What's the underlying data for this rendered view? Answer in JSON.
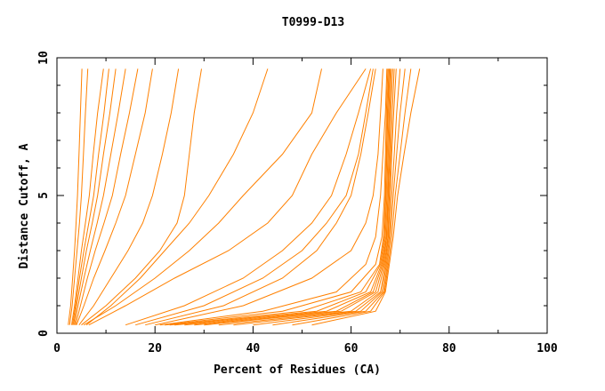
{
  "chart_data": {
    "type": "line",
    "title": "T0999-D13",
    "xlabel": "Percent of Residues (CA)",
    "ylabel": "Distance Cutoff, A",
    "xlim": [
      0,
      100
    ],
    "ylim": [
      0,
      10
    ],
    "x_ticks": [
      0,
      20,
      40,
      60,
      80,
      100
    ],
    "y_ticks": [
      0,
      5,
      10
    ],
    "grid": false,
    "legend": "none",
    "line_color": "#ff8000",
    "series": [
      {
        "x": [
          2.3,
          2.8,
          3.2,
          3.6,
          3.9,
          4.2,
          4.5,
          4.8,
          5.1
        ],
        "y": [
          0.3,
          1.0,
          2.0,
          3.0,
          4.0,
          5.0,
          6.5,
          8.0,
          9.6
        ]
      },
      {
        "x": [
          2.6,
          3.1,
          3.6,
          4.1,
          4.6,
          5.0,
          5.4,
          5.8,
          6.3
        ],
        "y": [
          0.3,
          1.0,
          2.0,
          3.0,
          4.0,
          5.0,
          6.5,
          8.0,
          9.6
        ]
      },
      {
        "x": [
          3.0,
          3.6,
          4.3,
          5.0,
          5.8,
          6.6,
          7.4,
          8.3,
          9.5
        ],
        "y": [
          0.3,
          1.0,
          2.0,
          3.0,
          4.0,
          5.0,
          6.5,
          8.0,
          9.6
        ]
      },
      {
        "x": [
          3.2,
          3.8,
          4.6,
          5.5,
          6.5,
          7.5,
          8.5,
          9.6,
          10.6
        ],
        "y": [
          0.3,
          1.0,
          2.0,
          3.0,
          4.0,
          5.0,
          6.5,
          8.0,
          9.6
        ]
      },
      {
        "x": [
          3.4,
          4.0,
          5.0,
          6.0,
          7.2,
          8.3,
          9.5,
          10.8,
          12.0
        ],
        "y": [
          0.3,
          1.0,
          2.0,
          3.0,
          4.0,
          5.0,
          6.5,
          8.0,
          9.6
        ]
      },
      {
        "x": [
          3.6,
          4.3,
          5.5,
          6.8,
          8.2,
          9.5,
          11.0,
          12.5,
          14.0
        ],
        "y": [
          0.3,
          1.0,
          2.0,
          3.0,
          4.0,
          5.0,
          6.5,
          8.0,
          9.6
        ]
      },
      {
        "x": [
          3.8,
          4.8,
          6.2,
          7.8,
          9.6,
          11.3,
          13.0,
          14.8,
          16.5
        ],
        "y": [
          0.3,
          1.0,
          2.0,
          3.0,
          4.0,
          5.0,
          6.5,
          8.0,
          9.6
        ]
      },
      {
        "x": [
          4.0,
          5.5,
          7.5,
          9.8,
          12.0,
          14.0,
          16.0,
          18.0,
          19.5
        ],
        "y": [
          0.3,
          1.0,
          2.0,
          3.0,
          4.0,
          5.0,
          6.5,
          8.0,
          9.6
        ]
      },
      {
        "x": [
          4.5,
          7.5,
          11.0,
          14.5,
          17.5,
          19.5,
          21.5,
          23.3,
          24.8
        ],
        "y": [
          0.3,
          1.0,
          2.0,
          3.0,
          4.0,
          5.0,
          6.5,
          8.0,
          9.6
        ]
      },
      {
        "x": [
          5.0,
          10.0,
          16.0,
          21.0,
          24.5,
          26.0,
          27.0,
          28.0,
          29.5
        ],
        "y": [
          0.3,
          1.0,
          2.0,
          3.0,
          4.0,
          5.0,
          6.5,
          8.0,
          9.6
        ]
      },
      {
        "x": [
          5.5,
          12.0,
          20.0,
          27.0,
          33.0,
          38.0,
          46.0,
          52.0,
          54.0
        ],
        "y": [
          0.3,
          1.0,
          2.0,
          3.0,
          4.0,
          5.0,
          6.5,
          8.0,
          9.6
        ]
      },
      {
        "x": [
          6.0,
          11.0,
          17.0,
          22.0,
          27.0,
          31.0,
          36.0,
          40.0,
          43.0
        ],
        "y": [
          0.3,
          1.0,
          2.0,
          3.0,
          4.0,
          5.0,
          6.5,
          8.0,
          9.6
        ]
      },
      {
        "x": [
          6.5,
          14.0,
          24.0,
          35.0,
          43.0,
          48.0,
          52.0,
          57.0,
          63.0
        ],
        "y": [
          0.3,
          1.0,
          2.0,
          3.0,
          4.0,
          5.0,
          6.5,
          8.0,
          9.6
        ]
      },
      {
        "x": [
          14.0,
          26.0,
          38.0,
          46.0,
          52.0,
          56.0,
          59.0,
          61.5,
          64.0
        ],
        "y": [
          0.3,
          1.0,
          2.0,
          3.0,
          4.0,
          5.0,
          6.5,
          8.0,
          9.6
        ]
      },
      {
        "x": [
          16.0,
          30.0,
          42.0,
          50.0,
          55.0,
          59.0,
          61.5,
          63.0,
          64.5
        ],
        "y": [
          0.3,
          1.0,
          2.0,
          3.0,
          4.0,
          5.0,
          6.5,
          8.0,
          9.6
        ]
      },
      {
        "x": [
          18.0,
          34.0,
          46.0,
          53.0,
          57.0,
          60.0,
          62.0,
          63.5,
          65.0
        ],
        "y": [
          0.3,
          1.0,
          2.0,
          3.0,
          4.0,
          5.0,
          6.5,
          8.0,
          9.6
        ]
      },
      {
        "x": [
          20.0,
          38.0,
          52.0,
          60.0,
          63.0,
          64.5,
          65.5,
          66.0,
          66.5
        ],
        "y": [
          0.3,
          1.0,
          2.0,
          3.0,
          4.0,
          5.0,
          6.5,
          8.0,
          9.6
        ]
      },
      {
        "x": [
          21.0,
          42.0,
          57.0,
          63.0,
          65.0,
          66.0,
          66.5,
          67.0,
          67.3
        ],
        "y": [
          0.3,
          0.8,
          1.5,
          2.5,
          3.5,
          5.0,
          6.5,
          8.0,
          9.6
        ]
      },
      {
        "x": [
          22.0,
          46.0,
          60.0,
          65.0,
          66.3,
          66.8,
          67.0,
          67.2,
          67.5
        ],
        "y": [
          0.3,
          0.8,
          1.5,
          2.5,
          3.5,
          5.0,
          6.5,
          8.0,
          9.6
        ]
      },
      {
        "x": [
          23.0,
          50.0,
          62.0,
          65.8,
          66.6,
          67.0,
          67.2,
          67.4,
          67.7
        ],
        "y": [
          0.3,
          0.8,
          1.5,
          2.5,
          3.5,
          5.0,
          6.5,
          8.0,
          9.6
        ]
      },
      {
        "x": [
          24.0,
          53.0,
          63.0,
          66.0,
          66.8,
          67.1,
          67.3,
          67.5,
          67.8
        ],
        "y": [
          0.3,
          0.8,
          1.5,
          2.5,
          3.5,
          5.0,
          6.5,
          8.0,
          9.6
        ]
      },
      {
        "x": [
          26.0,
          55.0,
          64.0,
          66.2,
          67.0,
          67.3,
          67.5,
          67.7,
          68.0
        ],
        "y": [
          0.3,
          0.8,
          1.5,
          2.5,
          3.5,
          5.0,
          6.5,
          8.0,
          9.6
        ]
      },
      {
        "x": [
          28.0,
          57.0,
          64.5,
          66.4,
          67.2,
          67.5,
          67.7,
          67.9,
          68.2
        ],
        "y": [
          0.3,
          0.8,
          1.5,
          2.5,
          3.5,
          5.0,
          6.5,
          8.0,
          9.6
        ]
      },
      {
        "x": [
          30.0,
          58.0,
          65.0,
          66.6,
          67.3,
          67.6,
          67.9,
          68.1,
          68.5
        ],
        "y": [
          0.3,
          0.8,
          1.5,
          2.5,
          3.5,
          5.0,
          6.5,
          8.0,
          9.6
        ]
      },
      {
        "x": [
          33.0,
          60.0,
          65.5,
          66.8,
          67.5,
          67.8,
          68.1,
          68.4,
          68.8
        ],
        "y": [
          0.3,
          0.8,
          1.5,
          2.5,
          3.5,
          5.0,
          6.5,
          8.0,
          9.6
        ]
      },
      {
        "x": [
          36.0,
          61.0,
          66.0,
          67.0,
          67.6,
          68.0,
          68.3,
          68.7,
          69.2
        ],
        "y": [
          0.3,
          0.8,
          1.5,
          2.5,
          3.5,
          5.0,
          6.5,
          8.0,
          9.6
        ]
      },
      {
        "x": [
          40.0,
          62.0,
          66.3,
          67.2,
          67.8,
          68.3,
          68.8,
          69.3,
          70.0
        ],
        "y": [
          0.3,
          0.8,
          1.5,
          2.5,
          3.5,
          5.0,
          6.5,
          8.0,
          9.6
        ]
      },
      {
        "x": [
          44.0,
          63.0,
          66.6,
          67.4,
          68.0,
          68.6,
          69.3,
          70.0,
          71.0
        ],
        "y": [
          0.3,
          0.8,
          1.5,
          2.5,
          3.5,
          5.0,
          6.5,
          8.0,
          9.6
        ]
      },
      {
        "x": [
          48.0,
          64.0,
          66.8,
          67.6,
          68.3,
          69.0,
          70.0,
          71.0,
          72.2
        ],
        "y": [
          0.3,
          0.8,
          1.5,
          2.5,
          3.5,
          5.0,
          6.5,
          8.0,
          9.6
        ]
      },
      {
        "x": [
          52.0,
          65.0,
          67.0,
          67.8,
          68.6,
          69.5,
          70.8,
          72.2,
          74.0
        ],
        "y": [
          0.3,
          0.8,
          1.5,
          2.5,
          3.5,
          5.0,
          6.5,
          8.0,
          9.6
        ]
      }
    ]
  }
}
